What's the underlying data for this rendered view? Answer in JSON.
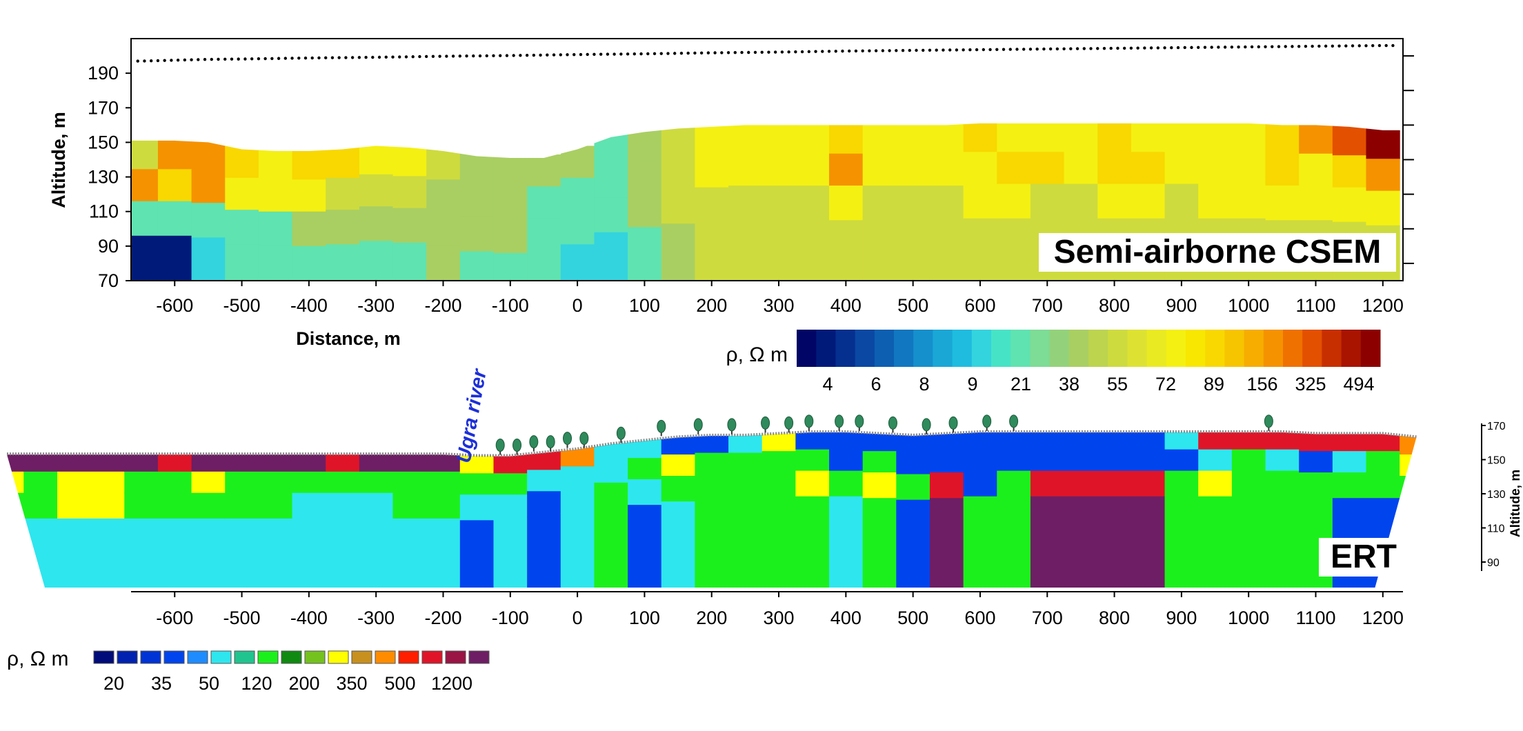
{
  "chart_data": [
    {
      "type": "heatmap",
      "panel": "csem",
      "label": "Semi-airborne CSEM",
      "xlabel": "Distance, m",
      "ylabel": "Altitude, m",
      "xlim": [
        -665,
        1230
      ],
      "ylim": [
        70,
        210
      ],
      "x_ticks": [
        -600,
        -500,
        -400,
        -300,
        -200,
        -100,
        0,
        100,
        200,
        300,
        400,
        500,
        600,
        700,
        800,
        900,
        1000,
        1100,
        1200
      ],
      "y_ticks": [
        70,
        90,
        110,
        130,
        150,
        170,
        190
      ],
      "x": [
        -650,
        -600,
        -550,
        -500,
        -450,
        -400,
        -350,
        -300,
        -250,
        -200,
        -150,
        -100,
        -50,
        0,
        50,
        100,
        150,
        200,
        250,
        300,
        350,
        400,
        450,
        500,
        550,
        600,
        650,
        700,
        750,
        800,
        850,
        900,
        950,
        1000,
        1050,
        1100,
        1150,
        1200
      ],
      "surface": [
        151,
        151,
        150,
        146,
        145,
        145,
        146,
        148,
        147,
        145,
        142,
        141,
        141,
        146,
        153,
        156,
        158,
        159,
        160,
        160,
        160,
        160,
        160,
        160,
        160,
        161,
        161,
        161,
        161,
        161,
        161,
        161,
        161,
        161,
        160,
        160,
        159,
        157
      ],
      "flight_altitude": [
        197,
        197.5,
        198,
        198.2,
        198.5,
        198.8,
        199,
        199.2,
        199.5,
        199.8,
        200,
        200.2,
        200.5,
        200.8,
        201,
        201.2,
        201.5,
        201.8,
        202,
        202.2,
        202.5,
        202.8,
        203,
        203.2,
        203.4,
        203.6,
        203.8,
        204,
        204.2,
        204.4,
        204.6,
        204.8,
        205,
        205.2,
        205.4,
        205.6,
        205.8,
        206
      ],
      "depth_profile": [
        {
          "depth": 8,
          "rho": [
            55,
            156,
            156,
            89,
            72,
            89,
            89,
            72,
            72,
            55,
            38,
            38,
            38,
            38,
            21,
            38,
            55,
            72,
            72,
            72,
            72,
            89,
            72,
            72,
            72,
            89,
            72,
            72,
            72,
            89,
            72,
            72,
            72,
            72,
            89,
            156,
            325,
            494
          ]
        },
        {
          "depth": 25,
          "rho": [
            156,
            89,
            156,
            72,
            72,
            72,
            55,
            55,
            55,
            38,
            38,
            38,
            21,
            21,
            21,
            38,
            55,
            72,
            72,
            72,
            72,
            156,
            72,
            72,
            72,
            72,
            89,
            89,
            72,
            89,
            89,
            72,
            72,
            72,
            89,
            72,
            89,
            156
          ]
        },
        {
          "depth": 45,
          "rho": [
            21,
            21,
            21,
            21,
            21,
            38,
            38,
            38,
            38,
            38,
            38,
            38,
            21,
            21,
            21,
            38,
            55,
            55,
            55,
            55,
            55,
            72,
            55,
            55,
            55,
            72,
            72,
            55,
            55,
            72,
            72,
            55,
            72,
            72,
            72,
            72,
            72,
            72
          ]
        },
        {
          "depth": 65,
          "rho": [
            4,
            4,
            9,
            21,
            21,
            21,
            21,
            21,
            21,
            38,
            21,
            21,
            21,
            9,
            9,
            21,
            38,
            55,
            55,
            55,
            55,
            55,
            55,
            55,
            55,
            55,
            55,
            55,
            55,
            55,
            55,
            55,
            55,
            55,
            55,
            55,
            55,
            55
          ]
        }
      ],
      "colorbar": {
        "title": "ρ, Ω m",
        "tick_labels": [
          "4",
          "6",
          "8",
          "9",
          "21",
          "38",
          "55",
          "72",
          "89",
          "156",
          "325",
          "494"
        ],
        "colors": [
          "#000566",
          "#001a7a",
          "#05308f",
          "#0a48a3",
          "#0d5fb2",
          "#1177c0",
          "#1590cc",
          "#1aa7d6",
          "#1fbcdf",
          "#33d4de",
          "#47e3c6",
          "#5fe3b0",
          "#7ddc95",
          "#93d27a",
          "#a9cf62",
          "#bcd44e",
          "#cedb3e",
          "#dde232",
          "#eaea22",
          "#f4f012",
          "#f8e700",
          "#f8d800",
          "#f7c400",
          "#f6ad00",
          "#f59200",
          "#ef7100",
          "#e35000",
          "#c82f00",
          "#a81400",
          "#8c0000"
        ]
      }
    },
    {
      "type": "heatmap",
      "panel": "ert",
      "label": "ERT",
      "annotation": "Ugra river",
      "ylabel": "Altitude, m",
      "xlim": [
        -665,
        1230
      ],
      "right_ylim": [
        82,
        170
      ],
      "x_ticks": [
        -600,
        -500,
        -400,
        -300,
        -200,
        -100,
        0,
        100,
        200,
        300,
        400,
        500,
        600,
        700,
        800,
        900,
        1000,
        1100,
        1200
      ],
      "right_y_ticks": [
        170,
        150,
        130,
        110,
        90
      ],
      "x": [
        -850,
        -800,
        -750,
        -700,
        -650,
        -600,
        -550,
        -500,
        -450,
        -400,
        -350,
        -300,
        -250,
        -200,
        -150,
        -100,
        -50,
        0,
        50,
        100,
        150,
        200,
        250,
        300,
        350,
        400,
        450,
        500,
        550,
        600,
        650,
        700,
        750,
        800,
        850,
        900,
        950,
        1000,
        1050,
        1100,
        1150,
        1200,
        1250
      ],
      "surface": [
        153,
        153,
        153,
        153,
        153,
        153,
        153,
        153,
        153,
        153,
        153,
        153,
        153,
        153,
        152,
        152,
        154,
        156,
        159,
        161,
        163,
        164,
        164,
        165,
        166,
        166,
        165,
        164,
        165,
        166,
        166,
        166,
        166,
        166,
        166,
        166,
        166,
        166,
        166,
        165,
        165,
        165,
        163
      ],
      "depth_profile": [
        {
          "depth": 5,
          "rho": [
            1200,
            1200,
            1200,
            1200,
            1200,
            500,
            1200,
            1200,
            1200,
            1200,
            500,
            1200,
            1200,
            1200,
            200,
            500,
            500,
            350,
            50,
            50,
            35,
            35,
            50,
            200,
            35,
            35,
            35,
            35,
            35,
            35,
            35,
            35,
            35,
            35,
            35,
            50,
            500,
            500,
            500,
            500,
            500,
            500,
            350
          ]
        },
        {
          "depth": 15,
          "rho": [
            200,
            120,
            200,
            200,
            120,
            120,
            200,
            120,
            120,
            120,
            120,
            120,
            120,
            120,
            120,
            120,
            50,
            50,
            50,
            120,
            200,
            120,
            120,
            120,
            120,
            35,
            120,
            35,
            35,
            35,
            35,
            35,
            35,
            35,
            35,
            35,
            50,
            120,
            50,
            35,
            50,
            120,
            200
          ]
        },
        {
          "depth": 30,
          "rho": [
            120,
            120,
            200,
            200,
            120,
            120,
            120,
            120,
            120,
            50,
            50,
            50,
            120,
            120,
            50,
            50,
            35,
            50,
            120,
            50,
            120,
            120,
            120,
            120,
            200,
            120,
            200,
            120,
            500,
            35,
            120,
            500,
            500,
            500,
            500,
            120,
            200,
            120,
            120,
            120,
            120,
            120,
            120
          ]
        },
        {
          "depth": 45,
          "rho": [
            50,
            50,
            50,
            50,
            50,
            50,
            50,
            50,
            50,
            50,
            50,
            50,
            50,
            50,
            35,
            50,
            35,
            50,
            120,
            35,
            50,
            120,
            120,
            120,
            120,
            50,
            120,
            35,
            1200,
            120,
            120,
            1200,
            1200,
            1200,
            1200,
            120,
            120,
            120,
            120,
            120,
            35,
            35,
            120
          ]
        }
      ],
      "colorbar": {
        "title": "ρ, Ω m",
        "tick_labels": [
          "20",
          "35",
          "50",
          "120",
          "200",
          "350",
          "500",
          "1200"
        ],
        "colors": [
          "#000c7a",
          "#0022b0",
          "#0033d6",
          "#0044ee",
          "#1e8cff",
          "#2ee6ee",
          "#21c48e",
          "#1cf01c",
          "#108a10",
          "#74c21e",
          "#ffff00",
          "#c8901e",
          "#ff8c00",
          "#ff1e00",
          "#e01428",
          "#9a1444",
          "#6e1e64"
        ]
      }
    }
  ]
}
